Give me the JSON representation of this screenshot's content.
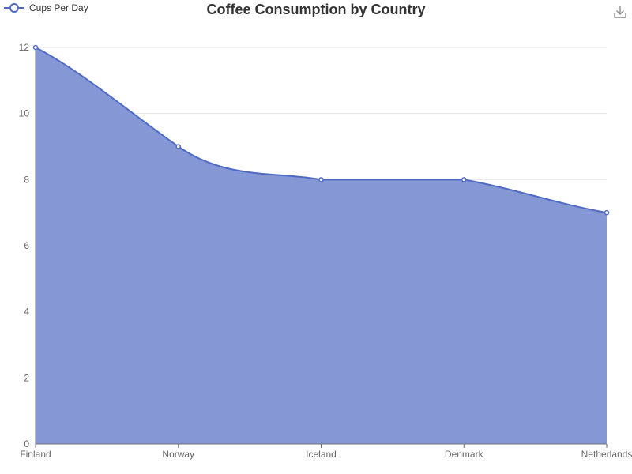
{
  "chart_data": {
    "type": "area",
    "title": "Coffee Consumption by Country",
    "categories": [
      "Finland",
      "Norway",
      "Iceland",
      "Denmark",
      "Netherlands"
    ],
    "series": [
      {
        "name": "Cups Per Day",
        "values": [
          12,
          9,
          8,
          8,
          7
        ]
      }
    ],
    "ylim": [
      0,
      12
    ],
    "yticks": [
      0,
      2,
      4,
      6,
      8,
      10,
      12
    ],
    "grid": true,
    "legend_position": "top-left",
    "colors": {
      "line": "#4f6bc4",
      "fill": "#8697d6"
    }
  },
  "toolbar": {
    "download_icon": "download-icon"
  }
}
